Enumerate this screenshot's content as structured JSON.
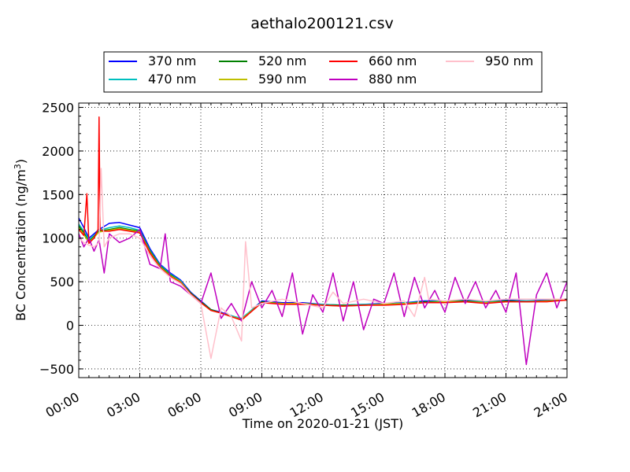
{
  "chart_data": {
    "type": "line",
    "title": "aethalo200121.csv",
    "xlabel": "Time on 2020-01-21 (JST)",
    "ylabel_prefix": "BC Concentration (ng/m",
    "ylabel_sup": "3",
    "ylabel_suffix": ")",
    "xlim": [
      0,
      24
    ],
    "ylim": [
      -600,
      2550
    ],
    "x_ticks": [
      0,
      3,
      6,
      9,
      12,
      15,
      18,
      21,
      24
    ],
    "x_tick_labels": [
      "00:00",
      "03:00",
      "06:00",
      "09:00",
      "12:00",
      "15:00",
      "18:00",
      "21:00",
      "24:00"
    ],
    "y_ticks": [
      -500,
      0,
      500,
      1000,
      1500,
      2000,
      2500
    ],
    "y_tick_labels": [
      "−500",
      "0",
      "500",
      "1000",
      "1500",
      "2000",
      "2500"
    ],
    "grid": true,
    "legend_position": "top-center",
    "x_unit": "hours",
    "series": [
      {
        "name": "370 nm",
        "color": "#0000ff",
        "x": [
          0,
          0.25,
          0.5,
          0.75,
          1,
          1.5,
          2,
          2.5,
          3,
          3.5,
          4,
          4.5,
          5,
          5.5,
          6,
          6.5,
          7,
          7.5,
          8,
          9,
          10,
          11,
          12,
          13,
          14,
          15,
          16,
          17,
          18,
          19,
          20,
          21,
          22,
          23,
          24
        ],
        "values": [
          1230,
          1120,
          1000,
          1050,
          1100,
          1170,
          1180,
          1150,
          1120,
          880,
          700,
          600,
          520,
          380,
          280,
          180,
          150,
          110,
          70,
          280,
          260,
          260,
          240,
          230,
          240,
          250,
          260,
          280,
          280,
          290,
          270,
          290,
          280,
          290,
          300
        ]
      },
      {
        "name": "470 nm",
        "color": "#00bfbf",
        "x": [
          0,
          0.25,
          0.5,
          0.75,
          1,
          1.5,
          2,
          2.5,
          3,
          3.5,
          4,
          4.5,
          5,
          5.5,
          6,
          6.5,
          7,
          7.5,
          8,
          9,
          10,
          11,
          12,
          13,
          14,
          15,
          16,
          17,
          18,
          19,
          20,
          21,
          22,
          23,
          24
        ],
        "values": [
          1160,
          1080,
          980,
          1030,
          1090,
          1120,
          1140,
          1120,
          1090,
          860,
          690,
          590,
          510,
          370,
          270,
          180,
          140,
          110,
          80,
          270,
          250,
          250,
          240,
          230,
          240,
          240,
          260,
          270,
          280,
          280,
          270,
          280,
          280,
          280,
          300
        ]
      },
      {
        "name": "520 nm",
        "color": "#008000",
        "x": [
          0,
          0.25,
          0.5,
          0.75,
          1,
          1.5,
          2,
          2.5,
          3,
          3.5,
          4,
          4.5,
          5,
          5.5,
          6,
          6.5,
          7,
          7.5,
          8,
          9,
          10,
          11,
          12,
          13,
          14,
          15,
          16,
          17,
          18,
          19,
          20,
          21,
          22,
          23,
          24
        ],
        "values": [
          1140,
          1060,
          960,
          1020,
          1080,
          1100,
          1120,
          1100,
          1080,
          850,
          680,
          580,
          500,
          370,
          270,
          180,
          140,
          100,
          60,
          270,
          250,
          250,
          230,
          230,
          230,
          240,
          250,
          270,
          270,
          280,
          260,
          280,
          270,
          280,
          290
        ]
      },
      {
        "name": "590 nm",
        "color": "#bfbf00",
        "x": [
          0,
          0.25,
          0.5,
          0.75,
          1,
          1.5,
          2,
          2.5,
          3,
          3.5,
          4,
          4.5,
          5,
          5.5,
          6,
          6.5,
          7,
          7.5,
          8,
          9,
          10,
          11,
          12,
          13,
          14,
          15,
          16,
          17,
          18,
          19,
          20,
          21,
          22,
          23,
          24
        ],
        "values": [
          1120,
          1040,
          950,
          1010,
          1070,
          1090,
          1110,
          1090,
          1070,
          840,
          670,
          570,
          500,
          360,
          260,
          170,
          140,
          100,
          70,
          260,
          250,
          250,
          230,
          220,
          230,
          240,
          250,
          260,
          270,
          270,
          260,
          270,
          270,
          280,
          290
        ]
      },
      {
        "name": "660 nm",
        "color": "#ff0000",
        "x": [
          0,
          0.25,
          0.4,
          0.5,
          0.75,
          0.95,
          1.0,
          1.05,
          1.2,
          1.5,
          2,
          2.5,
          3,
          3.5,
          4,
          4.5,
          5,
          5.5,
          6,
          6.5,
          7,
          7.5,
          8,
          9,
          10,
          11,
          12,
          13,
          14,
          15,
          16,
          17,
          18,
          19,
          20,
          21,
          22,
          23,
          24
        ],
        "values": [
          1100,
          1030,
          1510,
          940,
          1000,
          1100,
          2390,
          1100,
          1080,
          1080,
          1100,
          1080,
          1060,
          830,
          660,
          560,
          490,
          360,
          260,
          170,
          140,
          100,
          60,
          260,
          240,
          240,
          230,
          220,
          230,
          230,
          240,
          260,
          260,
          270,
          250,
          270,
          270,
          270,
          290
        ]
      },
      {
        "name": "880 nm",
        "color": "#bf00bf",
        "x": [
          0,
          0.25,
          0.5,
          0.75,
          1,
          1.25,
          1.5,
          2,
          2.5,
          3,
          3.5,
          4,
          4.25,
          4.5,
          5,
          5.5,
          6,
          6.5,
          7,
          7.5,
          8,
          8.5,
          9,
          9.5,
          10,
          10.5,
          11,
          11.5,
          12,
          12.5,
          13,
          13.5,
          14,
          14.5,
          15,
          15.5,
          16,
          16.5,
          17,
          17.5,
          18,
          18.5,
          19,
          19.5,
          20,
          20.5,
          21,
          21.5,
          22,
          22.5,
          23,
          23.5,
          24
        ],
        "values": [
          1050,
          900,
          1000,
          850,
          980,
          600,
          1050,
          950,
          1000,
          1100,
          700,
          650,
          1050,
          500,
          450,
          350,
          250,
          600,
          80,
          250,
          50,
          500,
          200,
          400,
          100,
          600,
          -100,
          350,
          150,
          600,
          50,
          500,
          -50,
          300,
          250,
          600,
          100,
          550,
          200,
          400,
          150,
          550,
          250,
          500,
          200,
          400,
          150,
          600,
          -450,
          350,
          600,
          200,
          500
        ]
      },
      {
        "name": "950 nm",
        "color": "#ffc0cb",
        "x": [
          0,
          0.25,
          0.5,
          0.75,
          1,
          1.1,
          1.25,
          1.5,
          2,
          2.5,
          3,
          3.5,
          4,
          4.5,
          5,
          5.5,
          6,
          6.5,
          7,
          7.5,
          8,
          8.2,
          8.5,
          9,
          10,
          11,
          12,
          12.5,
          13,
          14,
          15,
          16,
          16.5,
          17,
          17.2,
          18,
          19,
          20,
          21,
          22,
          23,
          24
        ],
        "values": [
          1000,
          950,
          920,
          900,
          950,
          1800,
          900,
          1000,
          1050,
          1050,
          1000,
          800,
          650,
          550,
          480,
          350,
          250,
          -380,
          200,
          100,
          -180,
          960,
          200,
          250,
          300,
          250,
          200,
          380,
          250,
          300,
          250,
          280,
          100,
          550,
          300,
          280,
          300,
          280,
          300,
          300,
          300,
          300
        ]
      }
    ]
  }
}
